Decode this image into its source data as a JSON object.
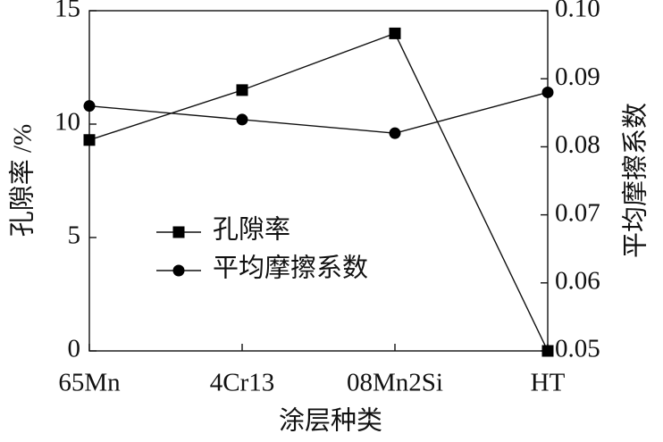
{
  "chart_data": {
    "type": "line",
    "x_label": "涂层种类",
    "y_label": "孔隙率 /%",
    "y2_label": "平均摩擦系数",
    "categories": [
      "65Mn",
      "4Cr13",
      "08Mn2Si",
      "HT"
    ],
    "series": [
      {
        "name": "孔隙率",
        "color": "#000000",
        "marker": "square",
        "values": [
          9.3,
          11.5,
          14.0,
          0
        ]
      },
      {
        "name": "平均摩擦系数",
        "color": "#000000",
        "marker": "circle",
        "axis": "y2",
        "values": [
          0.086,
          0.084,
          0.082,
          0.088
        ]
      }
    ],
    "ylim": [
      0,
      15
    ],
    "yticks": [
      0,
      5,
      10,
      15
    ],
    "y2lim": [
      0.05,
      0.1
    ],
    "y2ticks": [
      0.05,
      0.06,
      0.07,
      0.08,
      0.09,
      {
        "value": 0.1,
        "label": "0.10"
      }
    ],
    "grid": false,
    "legend": "center-left"
  }
}
